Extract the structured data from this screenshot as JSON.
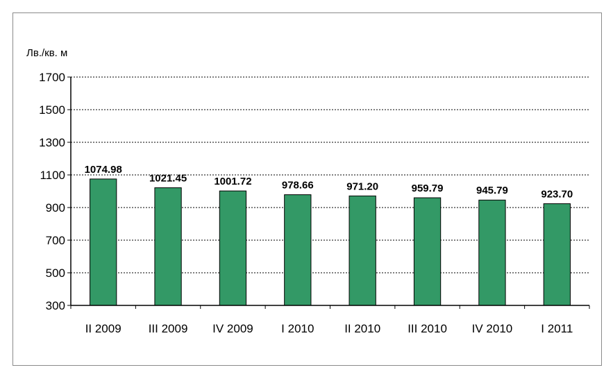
{
  "chart_data": {
    "type": "bar",
    "title": "",
    "ylabel": "Лв./кв. м",
    "xlabel": "",
    "categories": [
      "II 2009",
      "III 2009",
      "IV 2009",
      "I 2010",
      "II 2010",
      "III 2010",
      "IV 2010",
      "I 2011"
    ],
    "values": [
      1074.98,
      1021.45,
      1001.72,
      978.66,
      971.2,
      959.79,
      945.79,
      923.7
    ],
    "data_labels": [
      "1074.98",
      "1021.45",
      "1001.72",
      "978.66",
      "971.20",
      "959.79",
      "945.79",
      "923.70"
    ],
    "ylim": [
      300,
      1700
    ],
    "yticks": [
      300,
      500,
      700,
      900,
      1100,
      1300,
      1500,
      1700
    ],
    "ytick_labels": [
      "300",
      "500",
      "700",
      "900",
      "1100",
      "1300",
      "1500",
      "1700"
    ],
    "grid": true,
    "grid_style": "dotted",
    "legend": "none",
    "bar_color": "#339966",
    "bar_edge_color": "#000000"
  }
}
